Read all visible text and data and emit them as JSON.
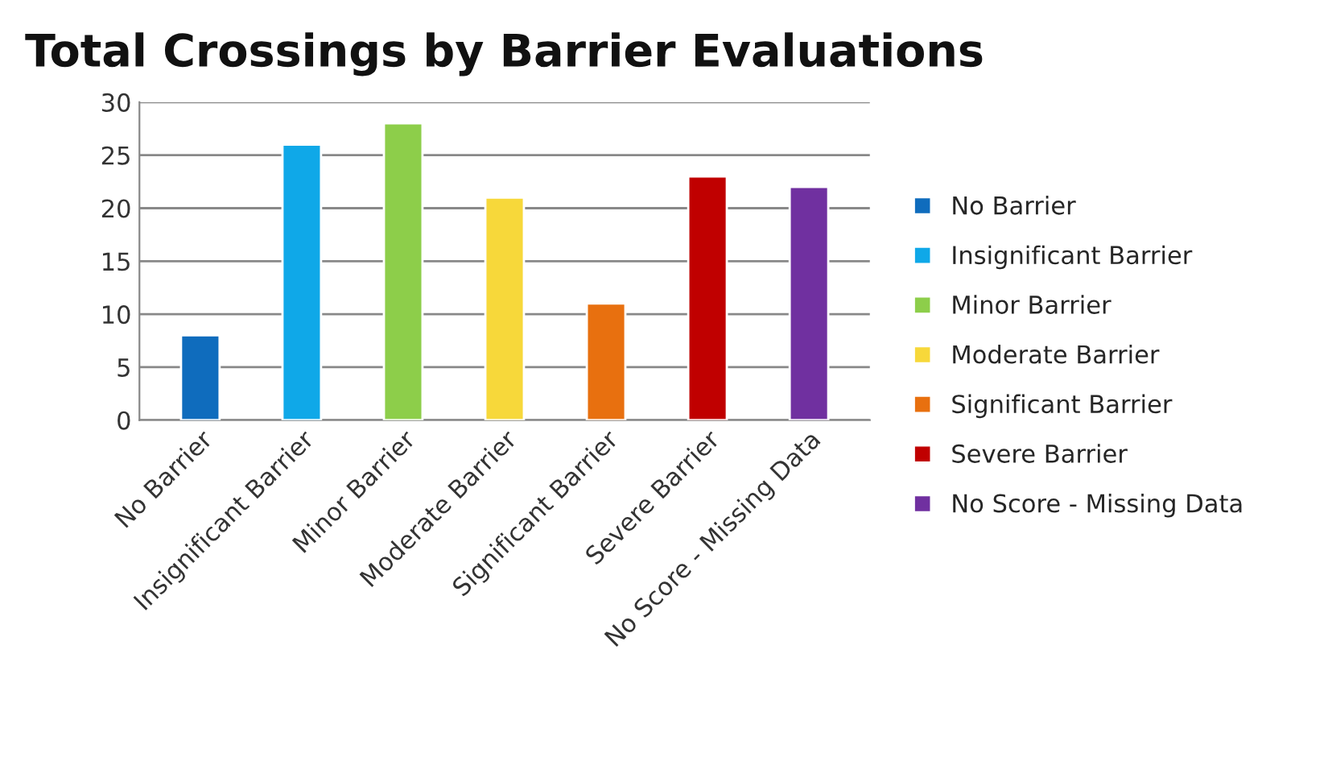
{
  "chart_data": {
    "type": "bar",
    "title": "Total Crossings by Barrier Evaluations",
    "stacked": true,
    "categories": [
      "No Barrier",
      "Insignificant Barrier",
      "Minor Barrier",
      "Moderate Barrier",
      "Significant Barrier",
      "Severe Barrier",
      "No Score - Missing Data"
    ],
    "series": [
      {
        "name": "No Barrier",
        "color": "#0f6cbd",
        "values": [
          8,
          null,
          null,
          null,
          null,
          null,
          null
        ]
      },
      {
        "name": "Insignificant Barrier",
        "color": "#0fa8e8",
        "values": [
          null,
          26,
          null,
          null,
          null,
          null,
          null
        ]
      },
      {
        "name": "Minor Barrier",
        "color": "#8dce4a",
        "values": [
          null,
          null,
          28,
          null,
          null,
          null,
          null
        ]
      },
      {
        "name": "Moderate Barrier",
        "color": "#f7d83a",
        "values": [
          null,
          null,
          null,
          21,
          null,
          null,
          null
        ]
      },
      {
        "name": "Significant Barrier",
        "color": "#e8700f",
        "values": [
          null,
          null,
          null,
          null,
          11,
          null,
          null
        ]
      },
      {
        "name": "Severe Barrier",
        "color": "#c00000",
        "values": [
          null,
          null,
          null,
          null,
          null,
          23,
          null
        ]
      },
      {
        "name": "No Score - Missing Data",
        "color": "#7030a0",
        "values": [
          null,
          null,
          null,
          null,
          null,
          null,
          22
        ]
      }
    ],
    "ylim": [
      0,
      30
    ],
    "yticks": [
      0,
      5,
      10,
      15,
      20,
      25,
      30
    ],
    "grid": "y",
    "legend": "right"
  }
}
